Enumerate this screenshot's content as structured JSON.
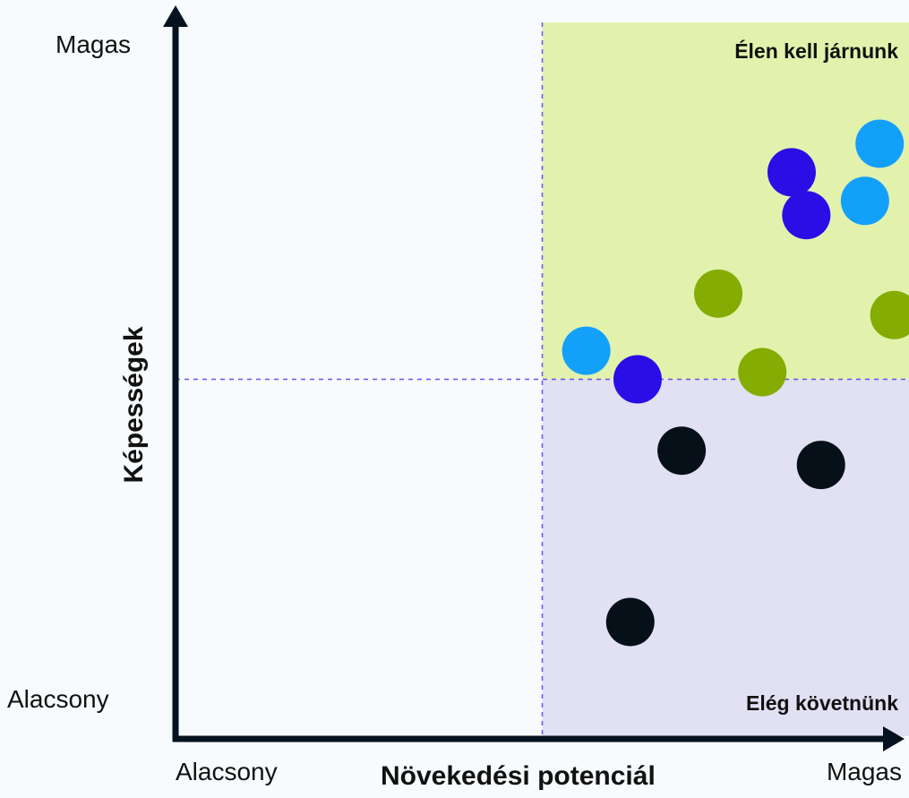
{
  "chart_data": {
    "type": "scatter",
    "xlabel": "Növekedési potenciál",
    "ylabel": "Képességek",
    "x_ticks": [
      "Alacsony",
      "Magas"
    ],
    "y_ticks": [
      "Alacsony",
      "Magas"
    ],
    "xlim": [
      0,
      100
    ],
    "ylim": [
      0,
      100
    ],
    "grid": false,
    "threshold": {
      "x": 50,
      "y": 50
    },
    "quadrants": {
      "top_right": {
        "label": "Élen kell járnunk",
        "color": "#e2f2ad"
      },
      "bottom_right": {
        "label": "Elég követnünk",
        "color": "#e2e0f3"
      }
    },
    "colors": {
      "light_blue": "#13a0fb",
      "blue": "#2a0ee6",
      "green": "#84ac02",
      "black": "#061019"
    },
    "series": [
      {
        "color": "light_blue",
        "points": [
          [
            56,
            54
          ],
          [
            94,
            75
          ],
          [
            96,
            83
          ]
        ]
      },
      {
        "color": "blue",
        "points": [
          [
            63,
            50
          ],
          [
            84,
            79
          ],
          [
            86,
            73
          ]
        ]
      },
      {
        "color": "green",
        "points": [
          [
            74,
            62
          ],
          [
            80,
            51
          ],
          [
            98,
            59
          ]
        ]
      },
      {
        "color": "black",
        "points": [
          [
            69,
            40
          ],
          [
            88,
            38
          ],
          [
            62,
            16
          ]
        ]
      }
    ]
  }
}
